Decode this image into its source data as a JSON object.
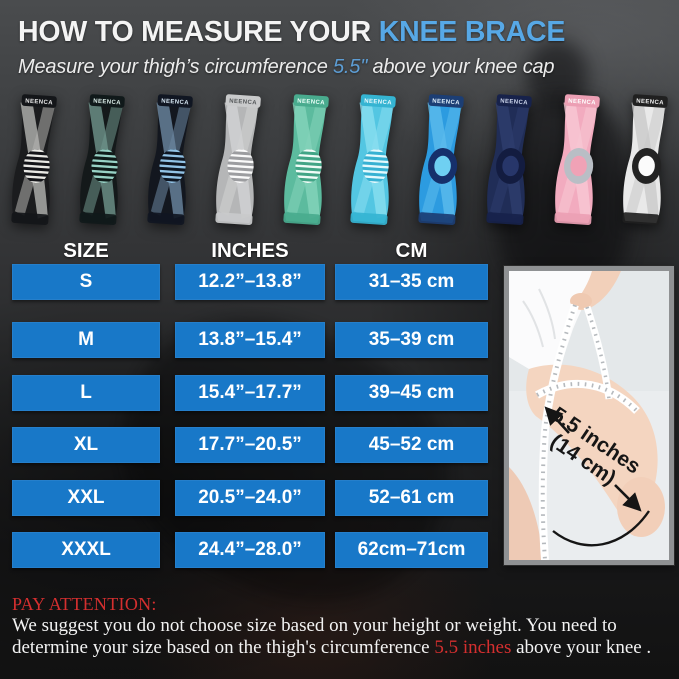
{
  "header": {
    "title_white": "HOW TO MEASURE YOUR ",
    "title_blue": "KNEE BRACE",
    "subtitle_pre": "Measure your thigh’s circumference ",
    "subtitle_highlight": "5.5\"",
    "subtitle_post": " above your knee cap",
    "accent_blue": "#57a8e6"
  },
  "braces": {
    "brand": "NEENCA",
    "items": [
      {
        "name": "black",
        "style": "stripes",
        "body": "#1b1c1e",
        "panel": "#b4b5b1",
        "cuff": "#141619",
        "cuff_text": "#e8e8e8",
        "pad": "#131418",
        "stripe": "#e9e9e5"
      },
      {
        "name": "dark-teal",
        "style": "stripes",
        "body": "#14191a",
        "panel": "#6f958c",
        "cuff": "#10191a",
        "cuff_text": "#d9ebe6",
        "pad": "#0e1a18",
        "stripe": "#97d2c5"
      },
      {
        "name": "steel-blue",
        "style": "stripes",
        "body": "#13171f",
        "panel": "#6c87a0",
        "cuff": "#101622",
        "cuff_text": "#d6e6f2",
        "pad": "#0e1622",
        "stripe": "#92c3e6"
      },
      {
        "name": "light-gray",
        "style": "stripes",
        "body": "#b5b6b7",
        "panel": "#d2d3d4",
        "cuff": "#c9cacb",
        "cuff_text": "#55585a",
        "pad": "#9c9da0",
        "stripe": "#fafafa"
      },
      {
        "name": "mint-green",
        "style": "stripes",
        "body": "#5cbb9e",
        "panel": "#85d4ba",
        "cuff": "#49ab8e",
        "cuff_text": "#eafff8",
        "pad": "#42a586",
        "stripe": "#f0fcf7"
      },
      {
        "name": "sky-blue",
        "style": "stripes",
        "body": "#53c6e2",
        "panel": "#8adfF0",
        "cuff": "#35b4d2",
        "cuff_text": "#eaf9fd",
        "pad": "#37b1d2",
        "stripe": "#e3f9fd"
      },
      {
        "name": "azure-blue",
        "style": "ring",
        "body": "#2c9be0",
        "panel": "#5cbbec",
        "cuff": "#1c3e74",
        "cuff_text": "#ddeefb",
        "ring": "#16306b",
        "pad": "#6fd0f2"
      },
      {
        "name": "navy",
        "style": "ring",
        "body": "#202d57",
        "panel": "#2e3d6e",
        "cuff": "#17224b",
        "cuff_text": "#ccd5ec",
        "ring": "#131c40",
        "pad": "#27366a"
      },
      {
        "name": "pink",
        "style": "ring",
        "body": "#f2abbf",
        "panel": "#f8c8d4",
        "cuff": "#ec9fb4",
        "cuff_text": "#ffffff",
        "ring": "#b9bec5",
        "pad": "#f0a2b6"
      },
      {
        "name": "white-stripe",
        "style": "ring",
        "body": "#e9e9e9",
        "panel": "#c9c9c9",
        "cuff": "#202020",
        "cuff_text": "#efefef",
        "ring": "#232323",
        "pad": "#fbfbfb"
      }
    ]
  },
  "size_table": {
    "headers": [
      "SIZE",
      "INCHES",
      "CM"
    ],
    "cell_color": "#1878c8",
    "rows": [
      {
        "size": "S",
        "inches": "12.2”–13.8”",
        "cm": "31–35 cm"
      },
      {
        "size": "M",
        "inches": "13.8”–15.4”",
        "cm": "35–39 cm"
      },
      {
        "size": "L",
        "inches": "15.4”–17.7”",
        "cm": "39–45 cm"
      },
      {
        "size": "XL",
        "inches": "17.7”–20.5”",
        "cm": "45–52 cm"
      },
      {
        "size": "XXL",
        "inches": "20.5”–24.0”",
        "cm": "52–61 cm"
      },
      {
        "size": "XXXL",
        "inches": "24.4”–28.0”",
        "cm": "62cm–71cm"
      }
    ]
  },
  "measure_photo": {
    "label_line1": "5.5 inches",
    "label_line2": "(14 cm)"
  },
  "attention": {
    "heading": "PAY ATTENTION:",
    "heading_color": "#d42f2f",
    "line1": "We suggest you do not choose size based on your height or weight. You need to",
    "line2_pre": "determine your size based on the thigh's circumference ",
    "line2_highlight": "5.5 inches",
    "line2_post": " above your knee ."
  }
}
